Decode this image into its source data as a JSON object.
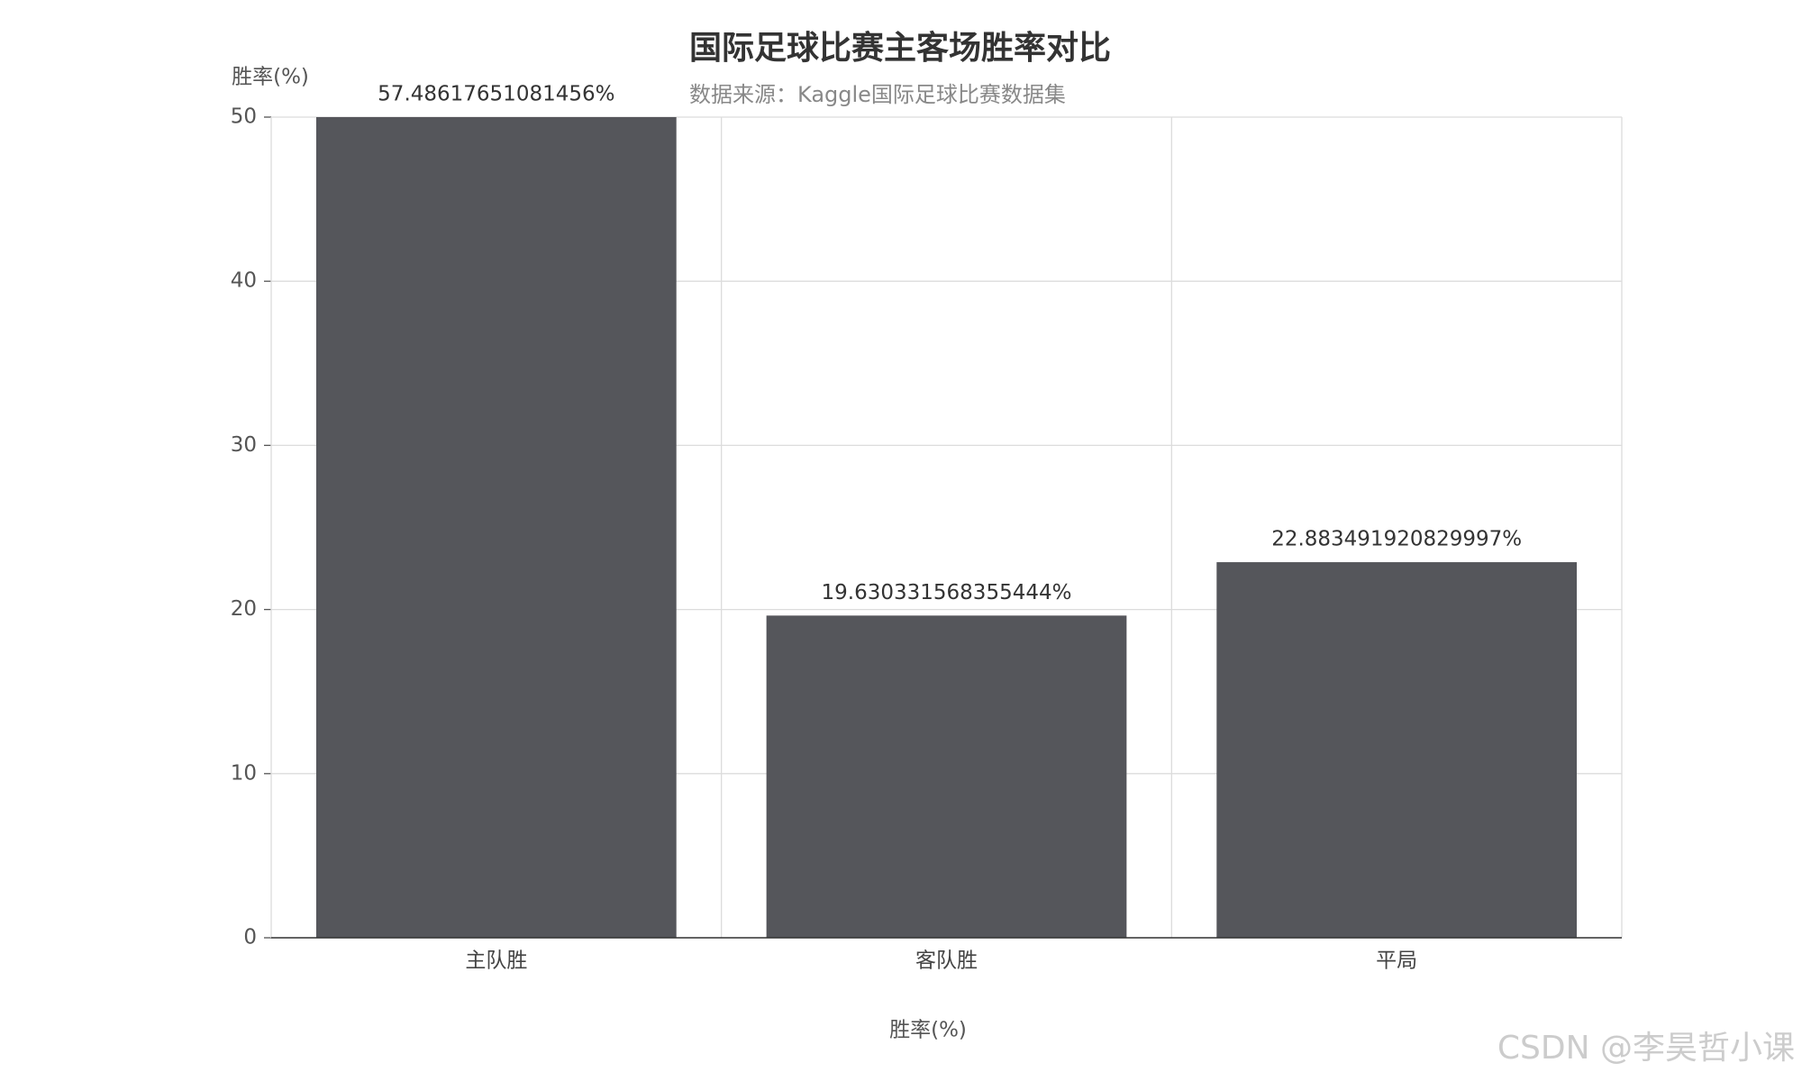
{
  "chart_data": {
    "type": "bar",
    "title": "国际足球比赛主客场胜率对比",
    "subtitle": "数据来源：Kaggle国际足球比赛数据集",
    "y_axis_label": "胜率(%)",
    "x_axis_label": "胜率(%)",
    "categories": [
      "主队胜",
      "客队胜",
      "平局"
    ],
    "values": [
      57.48617651081456,
      19.630331568355444,
      22.883491920829997
    ],
    "value_labels": [
      "57.48617651081456%",
      "19.630331568355444%",
      "22.883491920829997%"
    ],
    "color": "#55565b",
    "ylim": [
      0,
      50
    ],
    "yticks": [
      0,
      10,
      20,
      30,
      40,
      50
    ],
    "grid": true,
    "watermark": "CSDN @李昊哲小课"
  }
}
